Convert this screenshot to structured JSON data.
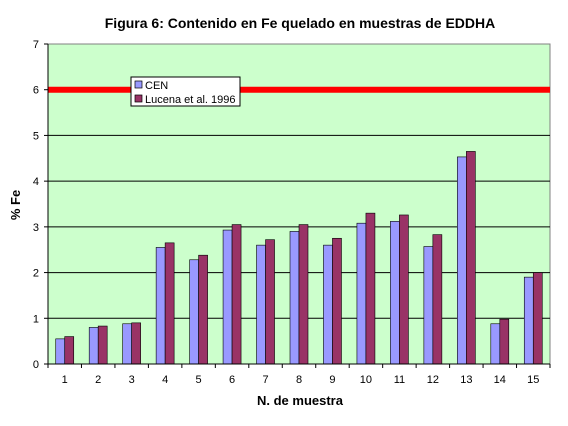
{
  "chart_data": {
    "type": "bar",
    "title": "Figura  6: Contenido en Fe quelado en muestras de EDDHA",
    "xlabel": "N. de muestra",
    "ylabel": "% Fe",
    "ylim": [
      0,
      7
    ],
    "yticks": [
      "0",
      "1",
      "2",
      "3",
      "4",
      "5",
      "6",
      "7"
    ],
    "categories": [
      "1",
      "2",
      "3",
      "4",
      "5",
      "6",
      "7",
      "8",
      "9",
      "10",
      "11",
      "12",
      "13",
      "14",
      "15"
    ],
    "series": [
      {
        "name": "CEN",
        "color": "#9999ff",
        "values": [
          0.55,
          0.8,
          0.88,
          2.55,
          2.28,
          2.93,
          2.6,
          2.9,
          2.6,
          3.08,
          3.12,
          2.57,
          4.53,
          0.88,
          1.9
        ]
      },
      {
        "name": "Lucena et al. 1996",
        "color": "#993366",
        "values": [
          0.6,
          0.83,
          0.9,
          2.65,
          2.38,
          3.05,
          2.72,
          3.05,
          2.75,
          3.3,
          3.26,
          2.83,
          4.65,
          0.98,
          2.0
        ]
      }
    ],
    "reference_line": {
      "value": 6.0,
      "color": "#ff0000"
    },
    "plot_background": "#ccffcc",
    "grid": true,
    "legend_position": "top-left"
  }
}
